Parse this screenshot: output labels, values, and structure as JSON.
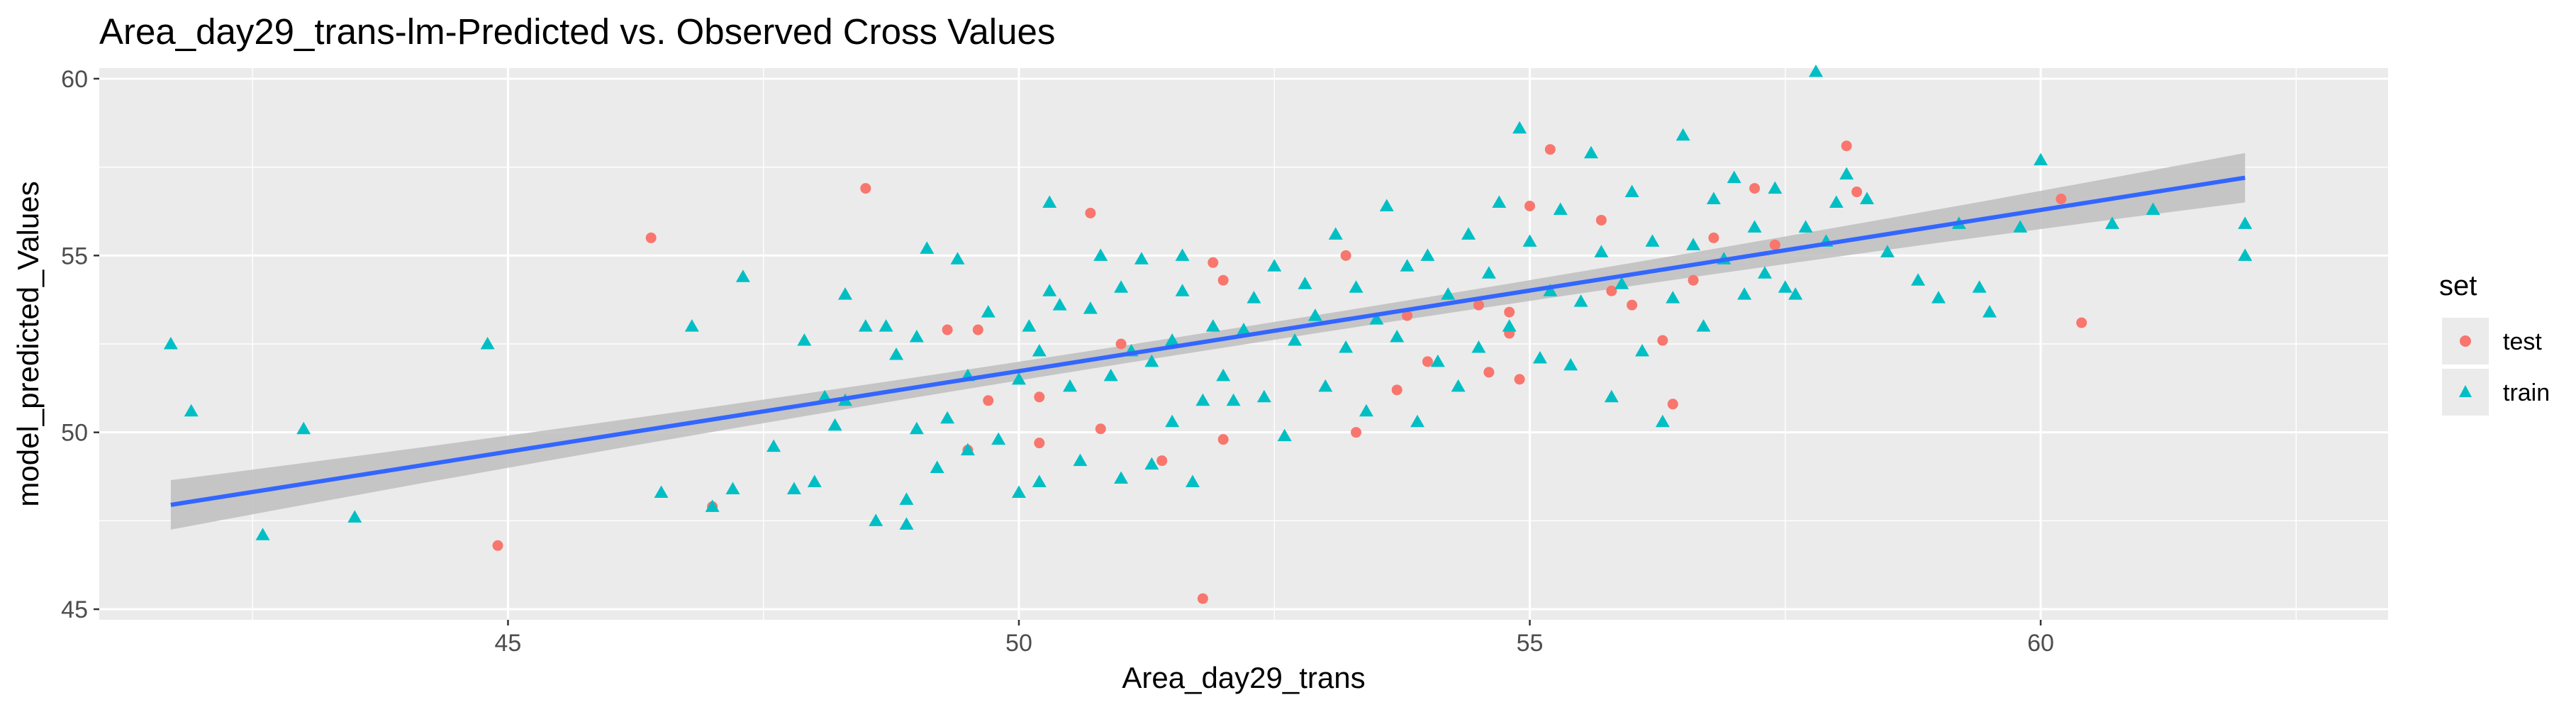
{
  "chart_data": {
    "type": "scatter",
    "title": "Area_day29_trans-lm-Predicted vs. Observed Cross Values",
    "xlabel": "Area_day29_trans",
    "ylabel": "model_predicted_Values",
    "xlim": [
      41.0,
      63.4
    ],
    "ylim": [
      44.7,
      60.3
    ],
    "x_ticks": [
      45,
      50,
      55,
      60
    ],
    "y_ticks": [
      45,
      50,
      55,
      60
    ],
    "grid": true,
    "legend": {
      "title": "set",
      "position": "right",
      "entries": [
        "test",
        "train"
      ]
    },
    "fit_line": {
      "method": "lm",
      "x": [
        41.7,
        62.0
      ],
      "y": [
        47.95,
        57.2
      ],
      "se_band_halfwidth_ends": 0.7,
      "se_band_halfwidth_mid": 0.25,
      "color": "#3366FF",
      "band_color": "#BEBEBE"
    },
    "series": [
      {
        "name": "test",
        "color": "#F8766D",
        "marker": "circle",
        "points": [
          [
            44.9,
            46.8
          ],
          [
            46.4,
            55.5
          ],
          [
            47.0,
            47.9
          ],
          [
            48.5,
            56.9
          ],
          [
            49.3,
            52.9
          ],
          [
            49.5,
            49.5
          ],
          [
            49.6,
            52.9
          ],
          [
            49.7,
            50.9
          ],
          [
            50.2,
            49.7
          ],
          [
            50.2,
            51.0
          ],
          [
            50.7,
            56.2
          ],
          [
            50.8,
            50.1
          ],
          [
            51.0,
            52.5
          ],
          [
            51.4,
            49.2
          ],
          [
            51.8,
            45.3
          ],
          [
            51.9,
            54.8
          ],
          [
            52.0,
            54.3
          ],
          [
            52.0,
            49.8
          ],
          [
            53.2,
            55.0
          ],
          [
            53.3,
            50.0
          ],
          [
            53.7,
            51.2
          ],
          [
            54.0,
            52.0
          ],
          [
            54.5,
            53.6
          ],
          [
            54.6,
            51.7
          ],
          [
            54.8,
            52.8
          ],
          [
            54.8,
            53.4
          ],
          [
            54.9,
            51.5
          ],
          [
            55.0,
            56.4
          ],
          [
            55.2,
            58.0
          ],
          [
            55.7,
            56.0
          ],
          [
            56.0,
            53.6
          ],
          [
            56.3,
            52.6
          ],
          [
            56.4,
            50.8
          ],
          [
            56.6,
            54.3
          ],
          [
            56.8,
            55.5
          ],
          [
            57.2,
            56.9
          ],
          [
            57.4,
            55.3
          ],
          [
            58.1,
            58.1
          ],
          [
            58.2,
            56.8
          ],
          [
            60.2,
            56.6
          ],
          [
            60.4,
            53.1
          ],
          [
            55.8,
            54.0
          ],
          [
            53.8,
            53.3
          ]
        ]
      },
      {
        "name": "train",
        "color": "#00BFC4",
        "marker": "triangle",
        "points": [
          [
            41.7,
            52.5
          ],
          [
            41.9,
            50.6
          ],
          [
            42.6,
            47.1
          ],
          [
            43.0,
            50.1
          ],
          [
            43.5,
            47.6
          ],
          [
            44.8,
            52.5
          ],
          [
            46.5,
            48.3
          ],
          [
            47.0,
            47.9
          ],
          [
            47.2,
            48.4
          ],
          [
            47.3,
            54.4
          ],
          [
            47.6,
            49.6
          ],
          [
            47.8,
            48.4
          ],
          [
            47.9,
            52.6
          ],
          [
            48.0,
            48.6
          ],
          [
            48.1,
            51.0
          ],
          [
            48.2,
            50.2
          ],
          [
            48.3,
            53.9
          ],
          [
            48.5,
            53.0
          ],
          [
            48.6,
            47.5
          ],
          [
            48.7,
            53.0
          ],
          [
            48.8,
            52.2
          ],
          [
            48.9,
            47.4
          ],
          [
            48.9,
            48.1
          ],
          [
            49.0,
            50.1
          ],
          [
            49.0,
            52.7
          ],
          [
            49.1,
            55.2
          ],
          [
            49.2,
            49.0
          ],
          [
            49.3,
            50.4
          ],
          [
            49.4,
            54.9
          ],
          [
            49.5,
            49.5
          ],
          [
            49.5,
            51.6
          ],
          [
            49.7,
            53.4
          ],
          [
            49.8,
            49.8
          ],
          [
            50.0,
            48.3
          ],
          [
            50.0,
            51.5
          ],
          [
            50.1,
            53.0
          ],
          [
            50.2,
            48.6
          ],
          [
            50.2,
            52.3
          ],
          [
            50.3,
            54.0
          ],
          [
            50.3,
            56.5
          ],
          [
            50.4,
            53.6
          ],
          [
            50.5,
            51.3
          ],
          [
            50.6,
            49.2
          ],
          [
            50.7,
            53.5
          ],
          [
            50.8,
            55.0
          ],
          [
            50.9,
            51.6
          ],
          [
            51.0,
            48.7
          ],
          [
            51.0,
            54.1
          ],
          [
            51.1,
            52.3
          ],
          [
            51.2,
            54.9
          ],
          [
            51.3,
            49.1
          ],
          [
            51.3,
            52.0
          ],
          [
            51.5,
            50.3
          ],
          [
            51.5,
            52.6
          ],
          [
            51.6,
            54.0
          ],
          [
            51.6,
            55.0
          ],
          [
            51.7,
            48.6
          ],
          [
            51.8,
            50.9
          ],
          [
            51.9,
            53.0
          ],
          [
            52.0,
            51.6
          ],
          [
            52.1,
            50.9
          ],
          [
            52.2,
            52.9
          ],
          [
            52.3,
            53.8
          ],
          [
            52.4,
            51.0
          ],
          [
            52.5,
            54.7
          ],
          [
            52.6,
            49.9
          ],
          [
            52.7,
            52.6
          ],
          [
            52.8,
            54.2
          ],
          [
            52.9,
            53.3
          ],
          [
            53.0,
            51.3
          ],
          [
            53.1,
            55.6
          ],
          [
            53.2,
            52.4
          ],
          [
            53.3,
            54.1
          ],
          [
            53.4,
            50.6
          ],
          [
            53.5,
            53.2
          ],
          [
            53.6,
            56.4
          ],
          [
            53.7,
            52.7
          ],
          [
            53.8,
            54.7
          ],
          [
            53.9,
            50.3
          ],
          [
            54.0,
            55.0
          ],
          [
            54.1,
            52.0
          ],
          [
            54.2,
            53.9
          ],
          [
            54.3,
            51.3
          ],
          [
            54.4,
            55.6
          ],
          [
            54.5,
            52.4
          ],
          [
            54.6,
            54.5
          ],
          [
            54.7,
            56.5
          ],
          [
            54.8,
            53.0
          ],
          [
            54.9,
            58.6
          ],
          [
            55.0,
            55.4
          ],
          [
            55.1,
            52.1
          ],
          [
            55.2,
            54.0
          ],
          [
            55.3,
            56.3
          ],
          [
            55.4,
            51.9
          ],
          [
            55.5,
            53.7
          ],
          [
            55.6,
            57.9
          ],
          [
            55.7,
            55.1
          ],
          [
            55.8,
            51.0
          ],
          [
            55.9,
            54.2
          ],
          [
            56.0,
            56.8
          ],
          [
            56.1,
            52.3
          ],
          [
            56.2,
            55.4
          ],
          [
            56.3,
            50.3
          ],
          [
            56.4,
            53.8
          ],
          [
            56.5,
            58.4
          ],
          [
            56.6,
            55.3
          ],
          [
            56.7,
            53.0
          ],
          [
            56.8,
            56.6
          ],
          [
            56.9,
            54.9
          ],
          [
            57.0,
            57.2
          ],
          [
            57.1,
            53.9
          ],
          [
            57.2,
            55.8
          ],
          [
            57.3,
            54.5
          ],
          [
            57.4,
            56.9
          ],
          [
            57.5,
            54.1
          ],
          [
            57.6,
            53.9
          ],
          [
            57.7,
            55.8
          ],
          [
            57.8,
            60.2
          ],
          [
            57.9,
            55.4
          ],
          [
            58.0,
            56.5
          ],
          [
            58.1,
            57.3
          ],
          [
            58.3,
            56.6
          ],
          [
            58.5,
            55.1
          ],
          [
            58.8,
            54.3
          ],
          [
            59.0,
            53.8
          ],
          [
            59.2,
            55.9
          ],
          [
            59.4,
            54.1
          ],
          [
            59.5,
            53.4
          ],
          [
            59.8,
            55.8
          ],
          [
            60.0,
            57.7
          ],
          [
            60.7,
            55.9
          ],
          [
            61.1,
            56.3
          ],
          [
            62.0,
            55.9
          ],
          [
            62.0,
            55.0
          ],
          [
            46.8,
            53.0
          ],
          [
            48.3,
            50.9
          ]
        ]
      }
    ]
  }
}
